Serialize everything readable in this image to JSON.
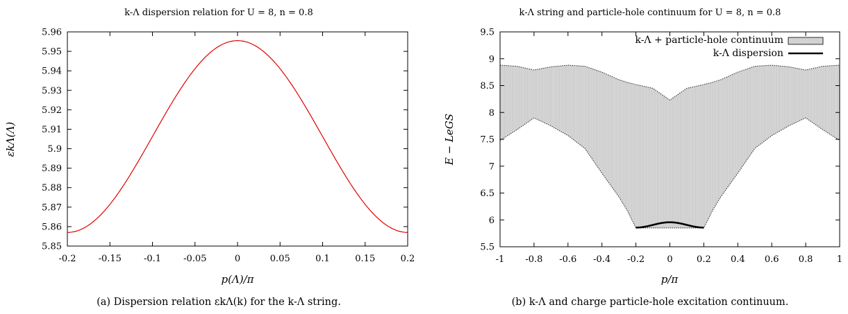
{
  "chart_data": [
    {
      "type": "line",
      "title": "k-Λ dispersion relation for U = 8, n = 0.8",
      "xlabel": "p(Λ)/π",
      "ylabel": "εkΛ(Λ)",
      "xlim": [
        -0.2,
        0.2
      ],
      "ylim": [
        5.85,
        5.96
      ],
      "xticks": [
        "-0.2",
        "-0.15",
        "-0.1",
        "-0.05",
        "0",
        "0.05",
        "0.1",
        "0.15",
        "0.2"
      ],
      "yticks": [
        "5.85",
        "5.86",
        "5.87",
        "5.88",
        "5.89",
        "5.9",
        "5.91",
        "5.92",
        "5.93",
        "5.94",
        "5.95",
        "5.96"
      ],
      "grid": false,
      "line_color": "#e00000",
      "series": [
        {
          "x": [
            -0.2,
            -0.18,
            -0.16,
            -0.14,
            -0.12,
            -0.1,
            -0.08,
            -0.06,
            -0.04,
            -0.02,
            0,
            0.02,
            0.04,
            0.06,
            0.08,
            0.1,
            0.12,
            0.14,
            0.16,
            0.18,
            0.2
          ],
          "y": [
            5.857,
            5.8594,
            5.8661,
            5.8761,
            5.8884,
            5.9017,
            5.9149,
            5.9273,
            5.9389,
            5.9497,
            5.9555,
            5.9497,
            5.9389,
            5.9273,
            5.9149,
            5.9017,
            5.8884,
            5.8761,
            5.8661,
            5.8594,
            5.857
          ]
        }
      ],
      "caption": "(a) Dispersion relation εkΛ(k) for the k-Λ string."
    },
    {
      "type": "area",
      "title": "k-Λ string and particle-hole continuum for U = 8, n = 0.8",
      "xlabel": "p/π",
      "ylabel": "E − LeGS",
      "xlim": [
        -1,
        1
      ],
      "ylim": [
        5.5,
        9.5
      ],
      "xticks": [
        "-1",
        "-0.8",
        "-0.6",
        "-0.4",
        "-0.2",
        "0",
        "0.2",
        "0.4",
        "0.6",
        "0.8",
        "1"
      ],
      "yticks": [
        "5.5",
        "6",
        "6.5",
        "7",
        "7.5",
        "8",
        "8.5",
        "9",
        "9.5"
      ],
      "grid": false,
      "legend_position": "top-right",
      "fill_color": "#dcdcdc",
      "series": [
        {
          "name": "k-Λ + particle-hole continuum",
          "x": [
            -1,
            -0.9,
            -0.8,
            -0.7,
            -0.6,
            -0.5,
            -0.4,
            -0.3,
            -0.25,
            -0.2,
            -0.1,
            0,
            0.1,
            0.2,
            0.25,
            0.3,
            0.4,
            0.5,
            0.6,
            0.7,
            0.8,
            0.9,
            1
          ],
          "lower": [
            7.48,
            7.68,
            7.9,
            7.75,
            7.57,
            7.33,
            6.87,
            6.43,
            6.17,
            5.85,
            5.85,
            5.85,
            5.85,
            5.85,
            6.17,
            6.43,
            6.87,
            7.33,
            7.57,
            7.75,
            7.9,
            7.68,
            7.48
          ],
          "upper": [
            8.88,
            8.86,
            8.79,
            8.85,
            8.88,
            8.86,
            8.75,
            8.61,
            8.56,
            8.52,
            8.45,
            8.23,
            8.45,
            8.52,
            8.56,
            8.61,
            8.75,
            8.86,
            8.88,
            8.85,
            8.79,
            8.86,
            8.88
          ]
        },
        {
          "name": "k-Λ dispersion",
          "x": [
            -0.2,
            -0.16,
            -0.12,
            -0.08,
            -0.04,
            0,
            0.04,
            0.08,
            0.12,
            0.16,
            0.2
          ],
          "y": [
            5.857,
            5.866,
            5.888,
            5.915,
            5.939,
            5.956,
            5.939,
            5.915,
            5.888,
            5.866,
            5.857
          ]
        }
      ],
      "caption": "(b) k-Λ and charge particle-hole excitation continuum."
    }
  ]
}
